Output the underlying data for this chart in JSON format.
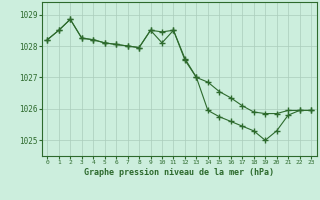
{
  "hours": [
    0,
    1,
    2,
    3,
    4,
    5,
    6,
    7,
    8,
    9,
    10,
    11,
    12,
    13,
    14,
    15,
    16,
    17,
    18,
    19,
    20,
    21,
    22,
    23
  ],
  "pressure1": [
    1028.2,
    1028.5,
    1028.85,
    1028.25,
    1028.2,
    1028.1,
    1028.05,
    1028.0,
    1027.95,
    1028.5,
    1028.45,
    1028.5,
    1027.6,
    1027.0,
    1026.85,
    1026.55,
    1026.35,
    1026.1,
    1025.9,
    1025.85,
    1025.85,
    1025.95,
    1025.95,
    1025.95
  ],
  "pressure2": [
    1028.2,
    1028.5,
    1028.85,
    1028.25,
    1028.2,
    1028.1,
    1028.05,
    1028.0,
    1027.95,
    1028.5,
    1028.1,
    1028.5,
    1027.55,
    1027.0,
    1025.95,
    1025.75,
    1025.6,
    1025.45,
    1025.3,
    1025.0,
    1025.3,
    1025.8,
    1025.95,
    1025.95
  ],
  "line_color": "#2d6a2d",
  "marker_color": "#2d6a2d",
  "bg_color": "#cceedd",
  "grid_color": "#aaccbb",
  "xlabel": "Graphe pression niveau de la mer (hPa)",
  "xlabel_color": "#2d6a2d",
  "tick_color": "#2d6a2d",
  "ylim_min": 1024.5,
  "ylim_max": 1029.4,
  "yticks": [
    1025,
    1026,
    1027,
    1028,
    1029
  ],
  "xticks": [
    0,
    1,
    2,
    3,
    4,
    5,
    6,
    7,
    8,
    9,
    10,
    11,
    12,
    13,
    14,
    15,
    16,
    17,
    18,
    19,
    20,
    21,
    22,
    23
  ]
}
